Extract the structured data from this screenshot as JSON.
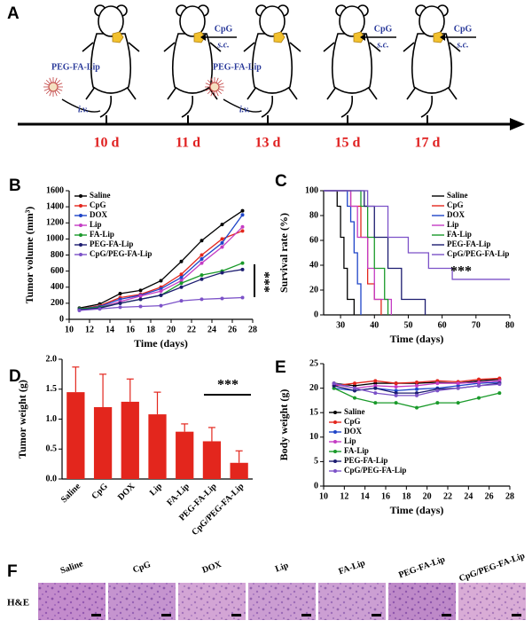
{
  "schedule": {
    "panel": "A",
    "days": [
      "10 d",
      "11 d",
      "13 d",
      "15 d",
      "17 d"
    ],
    "injections": [
      {
        "label": "PEG-FA-Lip",
        "route": "i.v."
      },
      {
        "label": "CpG",
        "route": "s.c."
      },
      {
        "label": "PEG-FA-Lip",
        "route": "i.v."
      },
      {
        "label": "CpG",
        "route": "s.c."
      },
      {
        "label": "CpG",
        "route": "s.c."
      }
    ]
  },
  "chart_data": [
    {
      "type": "line",
      "panel": "B",
      "xlabel": "Time (days)",
      "ylabel": "Tumor volume (mm³)",
      "x": [
        11,
        13,
        15,
        17,
        19,
        21,
        23,
        25,
        27
      ],
      "xlim": [
        10,
        28
      ],
      "xticks": [
        10,
        12,
        14,
        16,
        18,
        20,
        22,
        24,
        26,
        28
      ],
      "ylim": [
        0,
        1600
      ],
      "yticks": [
        0,
        200,
        400,
        600,
        800,
        1000,
        1200,
        1400,
        1600
      ],
      "legend": "upper left",
      "annotation": "***",
      "series": [
        {
          "name": "Saline",
          "color": "#000000",
          "values": [
            140,
            190,
            320,
            360,
            480,
            720,
            980,
            1180,
            1350
          ]
        },
        {
          "name": "CpG",
          "color": "#e3261d",
          "values": [
            130,
            170,
            270,
            310,
            400,
            560,
            800,
            1000,
            1100
          ]
        },
        {
          "name": "DOX",
          "color": "#1f45c8",
          "values": [
            130,
            160,
            250,
            300,
            380,
            520,
            750,
            950,
            1300
          ]
        },
        {
          "name": "Lip",
          "color": "#c43cc4",
          "values": [
            120,
            150,
            220,
            290,
            350,
            480,
            700,
            900,
            1150
          ]
        },
        {
          "name": "FA-Lip",
          "color": "#1a9a2a",
          "values": [
            130,
            150,
            200,
            250,
            300,
            450,
            550,
            600,
            700
          ]
        },
        {
          "name": "PEG-FA-Lip",
          "color": "#1c1c70",
          "values": [
            120,
            140,
            200,
            250,
            300,
            400,
            500,
            580,
            620
          ]
        },
        {
          "name": "CpG/PEG-FA-Lip",
          "color": "#7c52c8",
          "values": [
            110,
            130,
            150,
            160,
            170,
            230,
            250,
            260,
            270
          ]
        }
      ]
    },
    {
      "type": "step",
      "panel": "C",
      "xlabel": "Time (days)",
      "ylabel": "Survival rate (%)",
      "xlim": [
        25,
        80
      ],
      "xticks": [
        30,
        40,
        50,
        60,
        70,
        80
      ],
      "ylim": [
        0,
        100
      ],
      "yticks": [
        0,
        20,
        40,
        60,
        80,
        100
      ],
      "legend": "upper right",
      "annotation": "***",
      "series": [
        {
          "name": "Saline",
          "color": "#000000",
          "x": [
            25,
            29,
            30,
            31,
            32,
            34
          ],
          "values": [
            100,
            87.5,
            62.5,
            37.5,
            12.5,
            0
          ]
        },
        {
          "name": "CpG",
          "color": "#e3261d",
          "x": [
            25,
            33,
            36,
            38,
            40,
            42
          ],
          "values": [
            100,
            87.5,
            62.5,
            25,
            12.5,
            0
          ]
        },
        {
          "name": "DOX",
          "color": "#1f45c8",
          "x": [
            25,
            32,
            33,
            34,
            35,
            36
          ],
          "values": [
            100,
            87.5,
            75,
            50,
            25,
            0
          ]
        },
        {
          "name": "Lip",
          "color": "#c43cc4",
          "x": [
            25,
            33,
            35,
            38,
            40,
            45
          ],
          "values": [
            100,
            87.5,
            62.5,
            37.5,
            12.5,
            0
          ]
        },
        {
          "name": "FA-Lip",
          "color": "#1a9a2a",
          "x": [
            25,
            36,
            38,
            40,
            43,
            44
          ],
          "values": [
            100,
            87.5,
            62.5,
            37.5,
            12.5,
            0
          ]
        },
        {
          "name": "PEG-FA-Lip",
          "color": "#1c1c70",
          "x": [
            25,
            37,
            40,
            44,
            48,
            55
          ],
          "values": [
            100,
            87.5,
            62.5,
            37.5,
            12.5,
            0
          ]
        },
        {
          "name": "CpG/PEG-FA-Lip",
          "color": "#7c52c8",
          "x": [
            25,
            38,
            44,
            50,
            56,
            63,
            80
          ],
          "values": [
            100,
            87.5,
            62.5,
            50,
            37.5,
            28.6,
            28.6
          ]
        }
      ]
    },
    {
      "type": "bar",
      "panel": "D",
      "ylabel": "Tumor weight (g)",
      "color": "#e3261d",
      "categories": [
        "Saline",
        "CpG",
        "DOX",
        "Lip",
        "FA-Lip",
        "PEG-FA-Lip",
        "CpG/PEG-FA-Lip"
      ],
      "values": [
        1.45,
        1.2,
        1.29,
        1.08,
        0.79,
        0.63,
        0.27
      ],
      "errors": [
        0.42,
        0.55,
        0.38,
        0.37,
        0.13,
        0.23,
        0.2
      ],
      "ylim": [
        0,
        2
      ],
      "yticks": [
        {
          "value": 0,
          "label": "0.0"
        },
        0.5,
        {
          "value": 1,
          "label": "1.0"
        },
        1.5,
        {
          "value": 2,
          "label": "2.0"
        }
      ],
      "annotation": "***"
    },
    {
      "type": "line",
      "panel": "E",
      "xlabel": "Time (days)",
      "ylabel": "Body weight (g)",
      "x": [
        11,
        13,
        15,
        17,
        19,
        21,
        23,
        25,
        27
      ],
      "xlim": [
        10,
        28
      ],
      "xticks": [
        10,
        12,
        14,
        16,
        18,
        20,
        22,
        24,
        26,
        28
      ],
      "ylim": [
        0,
        25
      ],
      "yticks": [
        0,
        5,
        10,
        15,
        20,
        25
      ],
      "legend": "lower left",
      "series": [
        {
          "name": "Saline",
          "color": "#000000",
          "values": [
            21,
            20.5,
            21,
            21,
            21,
            21.2,
            21,
            21.5,
            21.8
          ]
        },
        {
          "name": "CpG",
          "color": "#e3261d",
          "values": [
            20.5,
            21,
            21.5,
            21,
            21.2,
            21.5,
            21.3,
            21.8,
            22
          ]
        },
        {
          "name": "DOX",
          "color": "#1f45c8",
          "values": [
            20,
            19.5,
            20,
            19.5,
            19.8,
            20,
            20.5,
            21,
            21.2
          ]
        },
        {
          "name": "Lip",
          "color": "#c43cc4",
          "values": [
            20.8,
            20,
            20.5,
            20.3,
            20.5,
            21,
            21,
            21.2,
            21.5
          ]
        },
        {
          "name": "FA-Lip",
          "color": "#1a9a2a",
          "values": [
            20,
            18,
            17,
            17,
            16,
            17,
            17,
            18,
            19
          ]
        },
        {
          "name": "PEG-FA-Lip",
          "color": "#1c1c70",
          "values": [
            20.5,
            19.5,
            20,
            19,
            19,
            19.8,
            20,
            20.5,
            21
          ]
        },
        {
          "name": "CpG/PEG-FA-Lip",
          "color": "#7c52c8",
          "values": [
            21,
            20,
            19,
            18.5,
            18.5,
            19.5,
            20,
            20.5,
            20.8
          ]
        }
      ]
    }
  ],
  "histology": {
    "panel": "F",
    "stain": "H&E",
    "groups": [
      "Saline",
      "CpG",
      "DOX",
      "Lip",
      "FA-Lip",
      "PEG-FA-Lip",
      "CpG/PEG-FA-Lip"
    ]
  }
}
